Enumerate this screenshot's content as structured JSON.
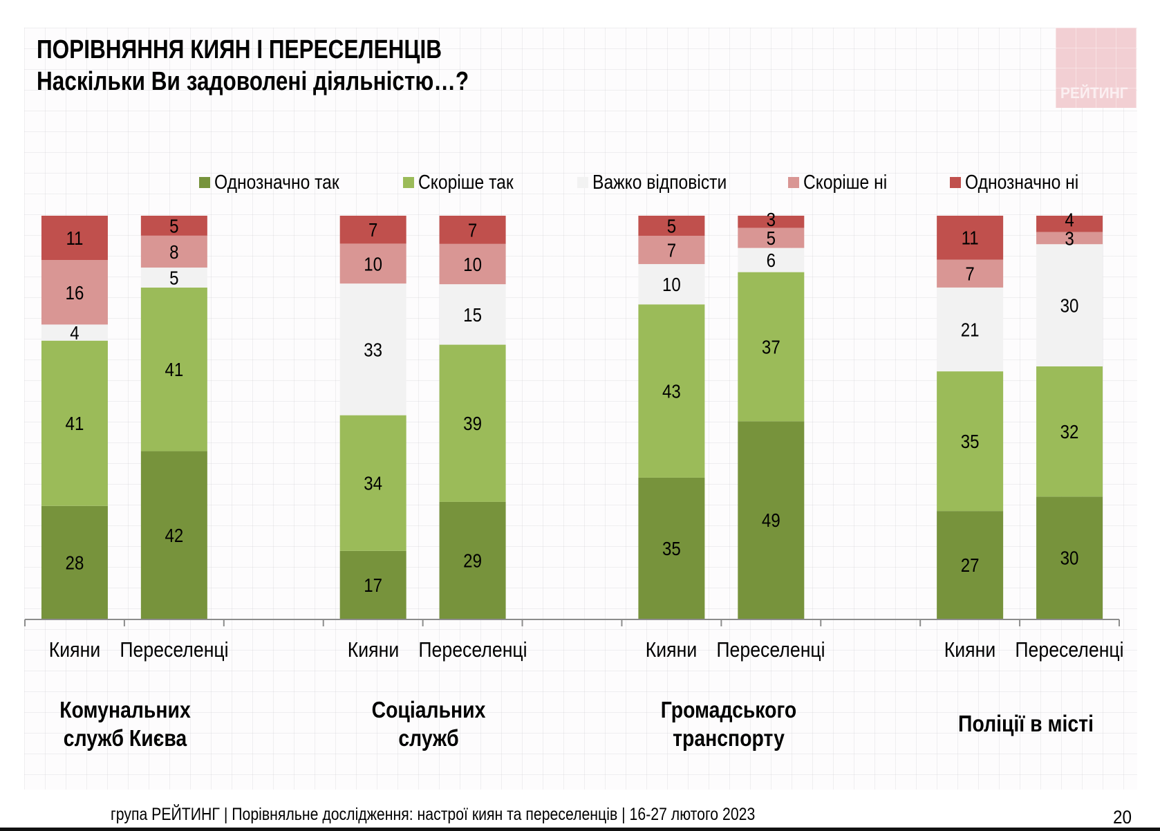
{
  "header": {
    "title": "ПОРІВНЯННЯ КИЯН І ПЕРЕСЕЛЕНЦІВ",
    "subtitle": "Наскільки Ви задоволені діяльністю…?",
    "logo_text": "РЕЙТИНГ"
  },
  "footer": {
    "source": "група РЕЙТИНГ | Порівняльне дослідження: настрої киян та переселенців | 16-27 лютого 2023",
    "page_number": "20"
  },
  "chart_data": {
    "type": "bar",
    "stacked": true,
    "percent_stacked": true,
    "title": "Наскільки Ви задоволені діяльністю…?",
    "legend_position": "top",
    "series": [
      {
        "name": "Однозначно так",
        "color": "#77933c",
        "values": [
          28,
          42,
          17,
          29,
          35,
          49,
          27,
          30
        ]
      },
      {
        "name": "Скоріше так",
        "color": "#9bbb59",
        "values": [
          41,
          41,
          34,
          39,
          43,
          37,
          35,
          32
        ]
      },
      {
        "name": "Важко відповісти",
        "color": "#f2f2f2",
        "values": [
          4,
          5,
          33,
          15,
          10,
          6,
          21,
          30
        ]
      },
      {
        "name": "Скоріше ні",
        "color": "#d99694",
        "values": [
          16,
          8,
          10,
          10,
          7,
          5,
          7,
          3
        ]
      },
      {
        "name": "Однозначно ні",
        "color": "#c0504d",
        "values": [
          11,
          5,
          7,
          7,
          5,
          3,
          11,
          4
        ]
      }
    ],
    "categories": [
      "Кияни",
      "Переселенці",
      "Кияни",
      "Переселенці",
      "Кияни",
      "Переселенці",
      "Кияни",
      "Переселенці"
    ],
    "groups": [
      {
        "label_lines": [
          "Комунальних",
          "служб Києва"
        ],
        "categories": [
          0,
          1
        ]
      },
      {
        "label_lines": [
          "Соціальних",
          "служб"
        ],
        "categories": [
          2,
          3
        ]
      },
      {
        "label_lines": [
          "Громадського",
          "транспорту"
        ],
        "categories": [
          4,
          5
        ]
      },
      {
        "label_lines": [
          "Поліції в місті"
        ],
        "categories": [
          6,
          7
        ]
      }
    ],
    "ylim": [
      0,
      100
    ],
    "grid": false
  }
}
